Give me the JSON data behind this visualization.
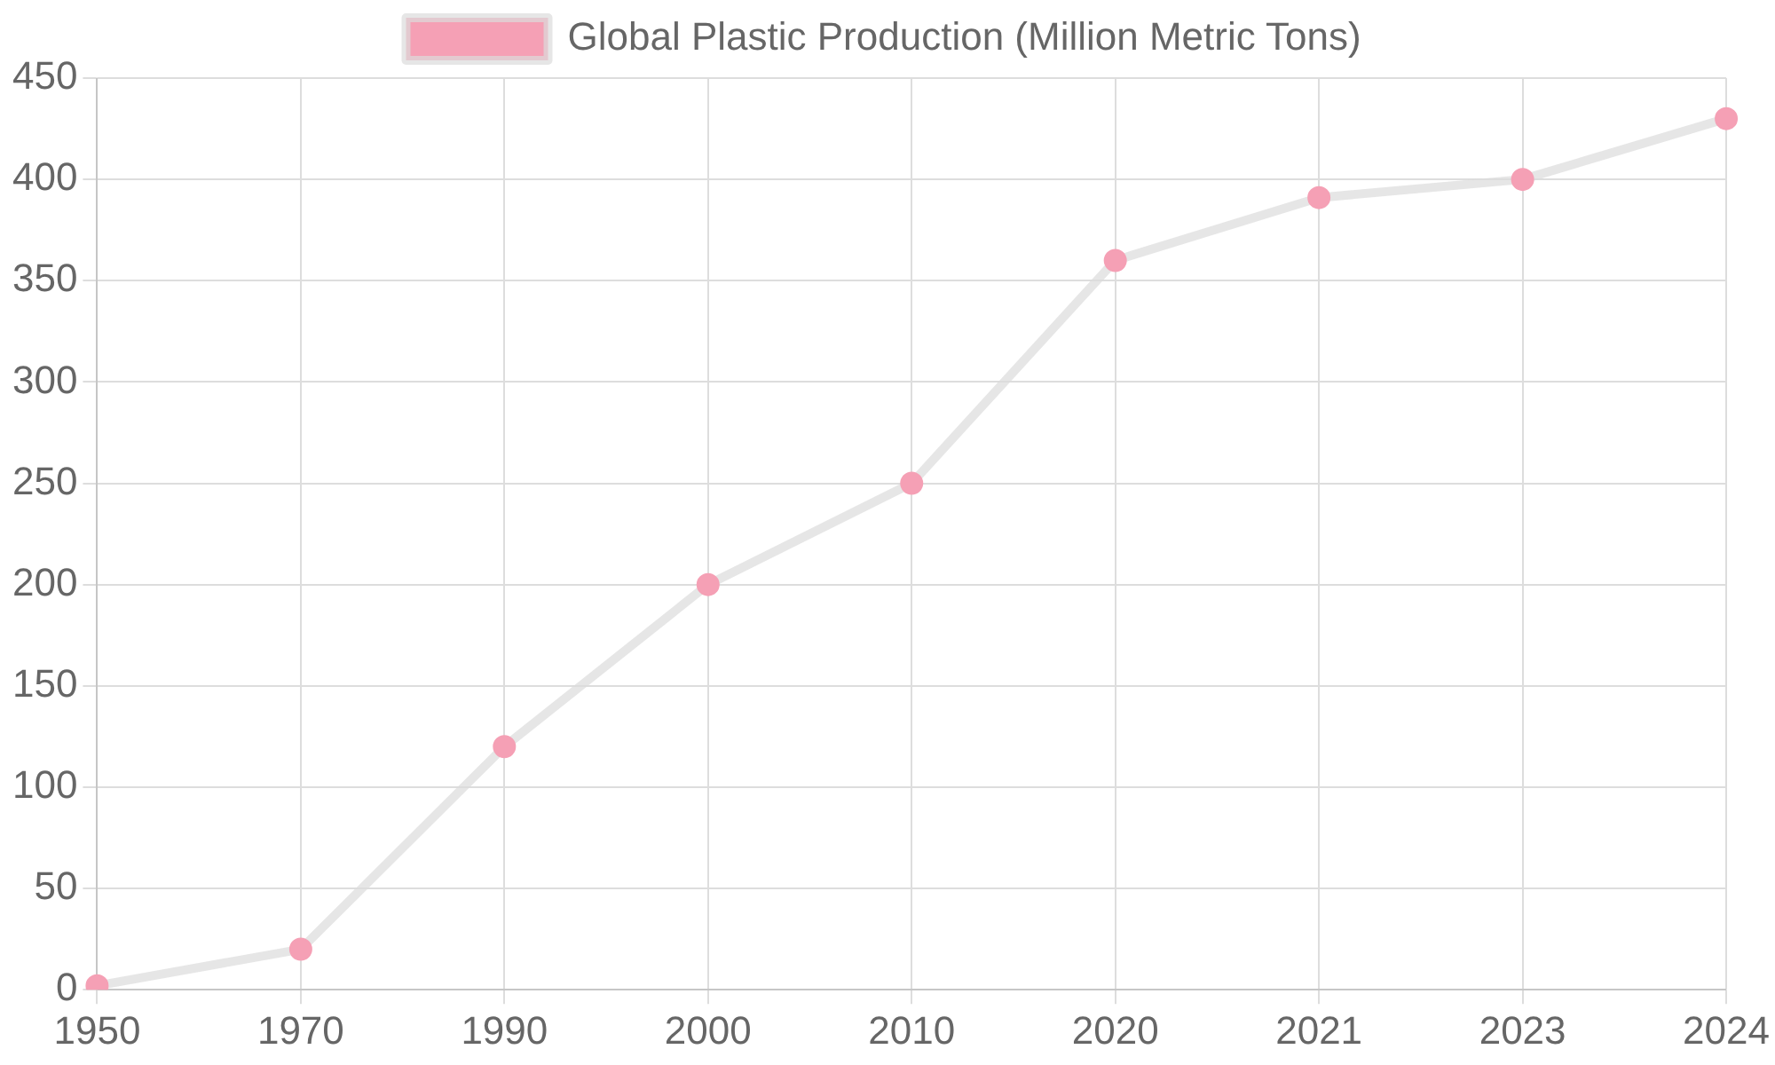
{
  "chart_data": {
    "type": "line",
    "categories": [
      "1950",
      "1970",
      "1990",
      "2000",
      "2010",
      "2020",
      "2021",
      "2023",
      "2024"
    ],
    "series": [
      {
        "name": "Global Plastic Production (Million Metric Tons)",
        "color": "#f5a0b5",
        "values": [
          2,
          20,
          120,
          200,
          250,
          360,
          391,
          400,
          430
        ]
      }
    ],
    "ylim": [
      0,
      450
    ],
    "yticks": [
      0,
      50,
      100,
      150,
      200,
      250,
      300,
      350,
      400,
      450
    ],
    "grid": true,
    "legend": "top",
    "marker": "circle",
    "line_style": "solid"
  }
}
